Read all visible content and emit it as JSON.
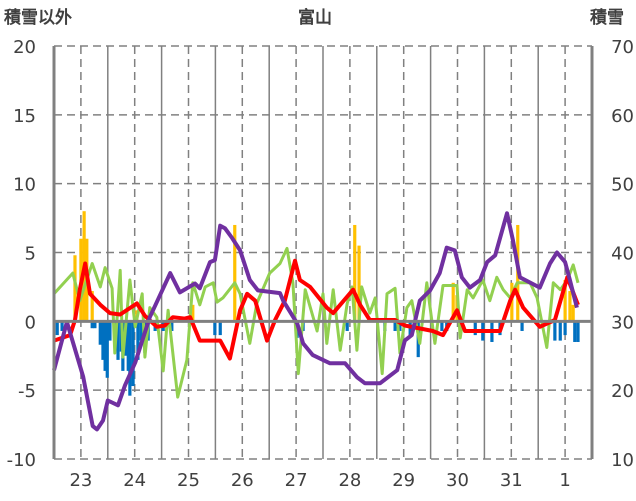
{
  "chart_data": {
    "type": "bar+line",
    "title": "富山",
    "ylabel_left": "積雪以外",
    "ylabel_right": "積雪",
    "ylim_left": [
      -10,
      20
    ],
    "ylim_right": [
      10,
      70
    ],
    "yticks_left": [
      "20",
      "15",
      "10",
      "5",
      "0",
      "-5",
      "-10"
    ],
    "yticks_right": [
      "70",
      "60",
      "50",
      "40",
      "30",
      "20",
      "10"
    ],
    "xlim_days": [
      0,
      10
    ],
    "xtick_labels": [
      "23",
      "24",
      "25",
      "26",
      "27",
      "28",
      "29",
      "30",
      "31",
      "1"
    ],
    "grid": true,
    "colors": {
      "orange_bars": "#FFC000",
      "blue_bars": "#0070C0",
      "red": "#FF0000",
      "green": "#92D050",
      "purple": "#7030A0"
    },
    "series": [
      {
        "name": "orange-bars",
        "axis": "left",
        "kind": "bar",
        "points": [
          [
            0.39,
            4.8
          ],
          [
            0.5,
            6.0
          ],
          [
            0.56,
            8.0
          ],
          [
            0.61,
            6.0
          ],
          [
            0.71,
            2.2
          ],
          [
            1.54,
            0.8
          ],
          [
            2.58,
            1.2
          ],
          [
            3.36,
            7.0
          ],
          [
            5.59,
            7.0
          ],
          [
            5.67,
            5.5
          ],
          [
            7.42,
            2.8
          ],
          [
            7.49,
            1.9
          ],
          [
            8.51,
            2.8
          ],
          [
            8.62,
            7.0
          ],
          [
            9.5,
            3.0
          ],
          [
            9.59,
            2.2
          ],
          [
            9.65,
            1.2
          ]
        ]
      },
      {
        "name": "blue-bars",
        "axis": "left",
        "kind": "bar",
        "points": [
          [
            0.06,
            -1.0
          ],
          [
            0.15,
            -0.7
          ],
          [
            0.71,
            -0.5
          ],
          [
            0.76,
            -0.5
          ],
          [
            0.86,
            -1.7
          ],
          [
            0.91,
            -2.8
          ],
          [
            0.95,
            -3.6
          ],
          [
            0.99,
            -4.1
          ],
          [
            1.04,
            -1.4
          ],
          [
            1.13,
            -1.0
          ],
          [
            1.19,
            -2.8
          ],
          [
            1.25,
            -2.2
          ],
          [
            1.28,
            -3.6
          ],
          [
            1.34,
            -2.5
          ],
          [
            1.38,
            -3.6
          ],
          [
            1.41,
            -5.4
          ],
          [
            1.47,
            -4.7
          ],
          [
            1.56,
            -2.8
          ],
          [
            1.62,
            -1.4
          ],
          [
            1.69,
            -2.3
          ],
          [
            1.75,
            -1.4
          ],
          [
            1.88,
            -0.7
          ],
          [
            2.03,
            -0.7
          ],
          [
            2.19,
            -0.7
          ],
          [
            2.99,
            -1.0
          ],
          [
            3.09,
            -1.0
          ],
          [
            4.52,
            -1.2
          ],
          [
            4.63,
            -0.7
          ],
          [
            5.45,
            -0.7
          ],
          [
            6.15,
            -0.7
          ],
          [
            6.34,
            -0.7
          ],
          [
            6.43,
            -0.7
          ],
          [
            6.62,
            -1.0
          ],
          [
            6.77,
            -2.6
          ],
          [
            7.21,
            -0.7
          ],
          [
            7.3,
            -0.7
          ],
          [
            7.83,
            -1.0
          ],
          [
            7.97,
            -1.4
          ],
          [
            8.14,
            -1.5
          ],
          [
            8.29,
            -1.0
          ],
          [
            8.7,
            -0.7
          ],
          [
            9.31,
            -1.4
          ],
          [
            9.41,
            -1.4
          ],
          [
            9.5,
            -1.0
          ],
          [
            9.68,
            -1.5
          ],
          [
            9.74,
            -1.5
          ]
        ]
      },
      {
        "name": "green-line",
        "axis": "left",
        "kind": "line",
        "width": 3,
        "points": [
          [
            0,
            2.0
          ],
          [
            0.35,
            3.5
          ],
          [
            0.48,
            1.5
          ],
          [
            0.71,
            4.2
          ],
          [
            0.86,
            2.5
          ],
          [
            0.95,
            3.9
          ],
          [
            1.08,
            2.4
          ],
          [
            1.13,
            -2.3
          ],
          [
            1.23,
            3.7
          ],
          [
            1.28,
            -2.6
          ],
          [
            1.41,
            3.0
          ],
          [
            1.51,
            -0.4
          ],
          [
            1.64,
            2.0
          ],
          [
            1.69,
            -2.6
          ],
          [
            1.78,
            1.0
          ],
          [
            1.91,
            0.3
          ],
          [
            2.03,
            -3.6
          ],
          [
            2.12,
            0.8
          ],
          [
            2.3,
            -5.5
          ],
          [
            2.47,
            -2.8
          ],
          [
            2.58,
            2.8
          ],
          [
            2.71,
            1.2
          ],
          [
            2.81,
            2.5
          ],
          [
            2.96,
            2.8
          ],
          [
            3.03,
            1.4
          ],
          [
            3.14,
            1.7
          ],
          [
            3.36,
            2.8
          ],
          [
            3.46,
            2.0
          ],
          [
            3.64,
            -1.6
          ],
          [
            3.77,
            1.3
          ],
          [
            4.01,
            3.5
          ],
          [
            4.2,
            4.2
          ],
          [
            4.33,
            5.3
          ],
          [
            4.44,
            2.8
          ],
          [
            4.54,
            -3.8
          ],
          [
            4.67,
            2.3
          ],
          [
            4.89,
            -0.7
          ],
          [
            5.0,
            2.0
          ],
          [
            5.07,
            -1.6
          ],
          [
            5.19,
            2.3
          ],
          [
            5.32,
            -2.1
          ],
          [
            5.45,
            1.3
          ],
          [
            5.54,
            2.5
          ],
          [
            5.63,
            -2.1
          ],
          [
            5.72,
            2.5
          ],
          [
            5.87,
            0.6
          ],
          [
            5.97,
            1.7
          ],
          [
            6.1,
            -3.8
          ],
          [
            6.19,
            2.0
          ],
          [
            6.34,
            2.4
          ],
          [
            6.43,
            -2.3
          ],
          [
            6.56,
            1.0
          ],
          [
            6.65,
            1.5
          ],
          [
            6.8,
            -1.6
          ],
          [
            6.93,
            2.8
          ],
          [
            7.08,
            -1.6
          ],
          [
            7.23,
            2.6
          ],
          [
            7.49,
            2.6
          ],
          [
            7.55,
            -1.2
          ],
          [
            7.68,
            2.3
          ],
          [
            7.79,
            1.7
          ],
          [
            7.97,
            3.0
          ],
          [
            8.1,
            1.5
          ],
          [
            8.23,
            3.2
          ],
          [
            8.35,
            2.3
          ],
          [
            8.48,
            1.7
          ],
          [
            8.61,
            2.8
          ],
          [
            8.85,
            2.8
          ],
          [
            8.98,
            1.7
          ],
          [
            9.16,
            -1.9
          ],
          [
            9.28,
            2.8
          ],
          [
            9.41,
            2.3
          ],
          [
            9.54,
            3.0
          ],
          [
            9.65,
            4.1
          ],
          [
            9.74,
            2.8
          ]
        ]
      },
      {
        "name": "red-line",
        "axis": "left",
        "kind": "line",
        "width": 4,
        "points": [
          [
            0,
            -1.4
          ],
          [
            0.3,
            -1.0
          ],
          [
            0.39,
            0.1
          ],
          [
            0.48,
            2.3
          ],
          [
            0.58,
            4.2
          ],
          [
            0.67,
            2.0
          ],
          [
            0.86,
            1.2
          ],
          [
            1.04,
            0.6
          ],
          [
            1.23,
            0.5
          ],
          [
            1.54,
            1.3
          ],
          [
            1.69,
            0.4
          ],
          [
            1.91,
            -0.4
          ],
          [
            2.06,
            -0.3
          ],
          [
            2.21,
            0.3
          ],
          [
            2.43,
            0.2
          ],
          [
            2.53,
            0.3
          ],
          [
            2.71,
            -1.4
          ],
          [
            3.09,
            -1.4
          ],
          [
            3.27,
            -2.7
          ],
          [
            3.46,
            0.8
          ],
          [
            3.59,
            2.0
          ],
          [
            3.74,
            1.5
          ],
          [
            3.96,
            -1.4
          ],
          [
            4.11,
            0.1
          ],
          [
            4.29,
            1.5
          ],
          [
            4.48,
            4.4
          ],
          [
            4.57,
            3.0
          ],
          [
            4.76,
            2.5
          ],
          [
            5.07,
            1.0
          ],
          [
            5.19,
            0.6
          ],
          [
            5.56,
            2.3
          ],
          [
            5.69,
            1.2
          ],
          [
            5.87,
            0.1
          ],
          [
            6.34,
            0.1
          ],
          [
            6.52,
            -0.3
          ],
          [
            7.04,
            -0.7
          ],
          [
            7.23,
            -1.0
          ],
          [
            7.49,
            0.8
          ],
          [
            7.64,
            -0.7
          ],
          [
            8.1,
            -0.7
          ],
          [
            8.29,
            -0.7
          ],
          [
            8.48,
            1.5
          ],
          [
            8.57,
            2.3
          ],
          [
            8.72,
            1.0
          ],
          [
            9.03,
            -0.4
          ],
          [
            9.31,
            0.1
          ],
          [
            9.54,
            3.2
          ],
          [
            9.74,
            1.2
          ]
        ]
      },
      {
        "name": "purple-line-snow-depth",
        "axis": "right",
        "kind": "line",
        "width": 4,
        "points": [
          [
            0,
            22.9
          ],
          [
            0.24,
            29.9
          ],
          [
            0.54,
            22.0
          ],
          [
            0.72,
            14.8
          ],
          [
            0.8,
            14.3
          ],
          [
            0.91,
            15.6
          ],
          [
            1.0,
            18.5
          ],
          [
            1.19,
            17.8
          ],
          [
            1.32,
            20.7
          ],
          [
            1.51,
            24.0
          ],
          [
            1.78,
            30.6
          ],
          [
            1.97,
            33.8
          ],
          [
            2.16,
            37.0
          ],
          [
            2.34,
            34.2
          ],
          [
            2.62,
            35.5
          ],
          [
            2.71,
            34.8
          ],
          [
            2.9,
            38.6
          ],
          [
            2.99,
            38.9
          ],
          [
            3.09,
            43.9
          ],
          [
            3.18,
            43.5
          ],
          [
            3.31,
            42.1
          ],
          [
            3.46,
            40.3
          ],
          [
            3.64,
            36.0
          ],
          [
            3.79,
            34.5
          ],
          [
            4.2,
            34.1
          ],
          [
            4.26,
            33.0
          ],
          [
            4.52,
            29.7
          ],
          [
            4.63,
            26.8
          ],
          [
            4.81,
            25.1
          ],
          [
            5.13,
            23.9
          ],
          [
            5.41,
            23.9
          ],
          [
            5.63,
            21.9
          ],
          [
            5.78,
            21.0
          ],
          [
            6.06,
            21.0
          ],
          [
            6.38,
            22.9
          ],
          [
            6.52,
            27.2
          ],
          [
            6.65,
            28.0
          ],
          [
            6.8,
            33.0
          ],
          [
            6.99,
            34.5
          ],
          [
            7.17,
            37.0
          ],
          [
            7.3,
            40.7
          ],
          [
            7.45,
            40.3
          ],
          [
            7.58,
            36.4
          ],
          [
            7.73,
            34.9
          ],
          [
            7.92,
            36.0
          ],
          [
            8.05,
            38.6
          ],
          [
            8.2,
            39.6
          ],
          [
            8.42,
            45.7
          ],
          [
            8.53,
            41.8
          ],
          [
            8.66,
            36.4
          ],
          [
            9.03,
            34.9
          ],
          [
            9.22,
            38.4
          ],
          [
            9.35,
            40.0
          ],
          [
            9.5,
            38.6
          ],
          [
            9.59,
            36.0
          ],
          [
            9.72,
            32.0
          ]
        ]
      }
    ]
  }
}
